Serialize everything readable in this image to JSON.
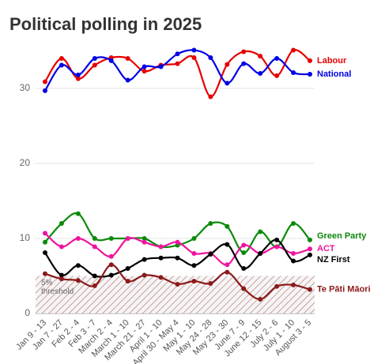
{
  "chart_data": {
    "type": "line",
    "title": "Political polling in 2025",
    "categories": [
      "Jan 9 - 13",
      "Jan 7 - 27",
      "Feb 2 - 4",
      "Feb 3 - 7",
      "March 2 - 4",
      "March 1 - 10",
      "March 21 - 27",
      "April 1 - 10",
      "April 30 - May 4",
      "May 1 - 10",
      "May 24 - 28",
      "May 23 - 30",
      "June 7 - 9",
      "June 12 - 15",
      "July 2 - 6",
      "July 1 - 10",
      "August 3 - 5"
    ],
    "series": [
      {
        "name": "Labour",
        "color": "#e60000",
        "values": [
          30.9,
          34.0,
          31.3,
          33.1,
          34.1,
          34.0,
          32.3,
          33.1,
          33.3,
          34.1,
          28.9,
          33.2,
          34.9,
          34.3,
          31.7,
          35.1,
          33.7
        ]
      },
      {
        "name": "National",
        "color": "#0000e6",
        "values": [
          29.7,
          33.1,
          31.8,
          34.0,
          33.7,
          31.1,
          32.9,
          32.9,
          34.6,
          35.1,
          34.1,
          30.7,
          33.3,
          32.0,
          34.0,
          32.1,
          31.9
        ]
      },
      {
        "name": "Green Party",
        "color": "#0a8a0a",
        "values": [
          9.5,
          12.0,
          13.3,
          10.0,
          10.0,
          10.0,
          10.0,
          8.9,
          9.1,
          10.0,
          12.0,
          11.6,
          8.1,
          10.9,
          8.9,
          12.0,
          9.8
        ]
      },
      {
        "name": "ACT",
        "color": "#f0139e",
        "values": [
          10.7,
          8.9,
          10.0,
          8.9,
          7.6,
          10.0,
          9.5,
          8.9,
          9.5,
          8.0,
          8.0,
          6.5,
          9.1,
          8.0,
          8.9,
          8.0,
          8.6
        ]
      },
      {
        "name": "NZ First",
        "color": "#000000",
        "values": [
          8.1,
          5.1,
          6.4,
          5.0,
          5.1,
          6.0,
          7.2,
          7.4,
          7.4,
          6.4,
          7.9,
          9.2,
          6.0,
          8.0,
          9.8,
          7.0,
          7.8
        ]
      },
      {
        "name": "Te Pāti Māori",
        "color": "#8b1a1a",
        "values": [
          5.3,
          4.6,
          4.4,
          3.7,
          6.5,
          4.3,
          5.1,
          4.8,
          3.9,
          4.3,
          4.0,
          5.5,
          3.3,
          1.9,
          3.6,
          3.8,
          3.2
        ]
      }
    ],
    "ylim": [
      0,
      36
    ],
    "yticks": [
      0,
      10,
      20,
      30
    ],
    "grid": true,
    "threshold": 5,
    "threshold_label": [
      "5%",
      "threshold"
    ]
  }
}
